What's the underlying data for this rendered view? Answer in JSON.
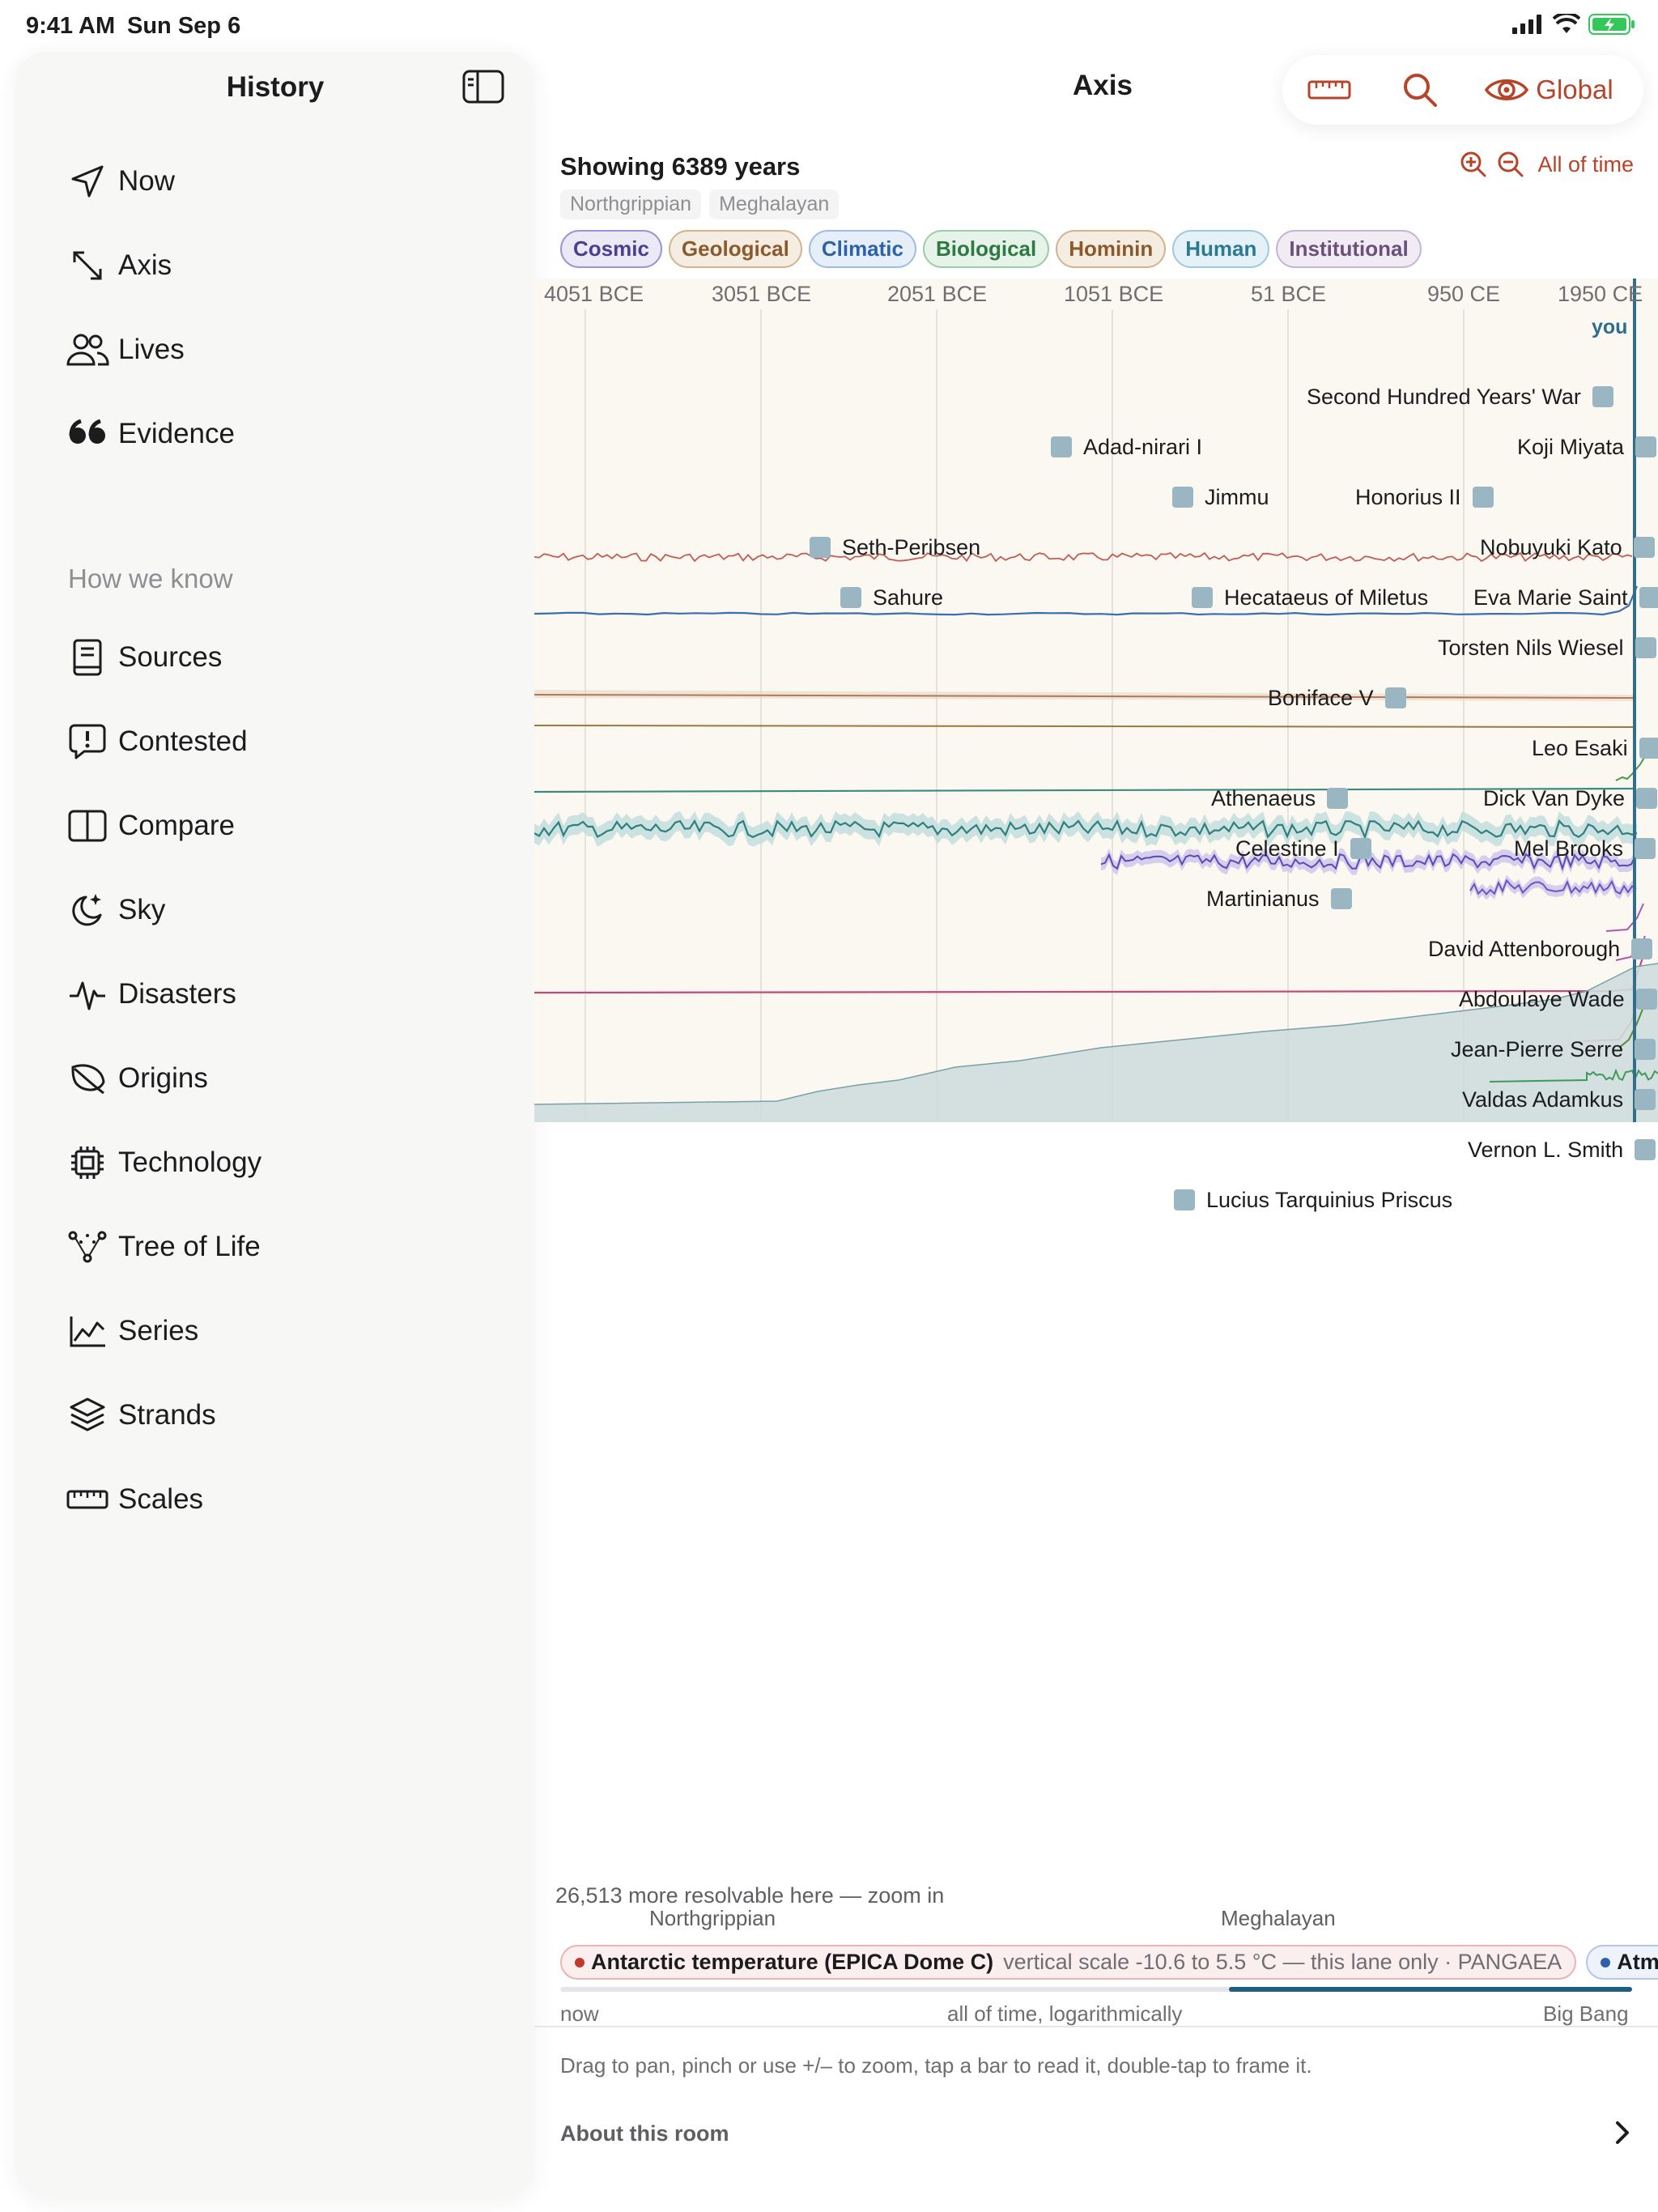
{
  "status": {
    "time": "9:41 AM",
    "date": "Sun Sep 6"
  },
  "sidebar": {
    "title": "History",
    "items": [
      {
        "label": "Now",
        "icon": "location-arrow-icon"
      },
      {
        "label": "Axis",
        "icon": "expand-arrows-icon"
      },
      {
        "label": "Lives",
        "icon": "people-icon"
      },
      {
        "label": "Evidence",
        "icon": "quote-icon"
      }
    ],
    "section_label": "How we know",
    "section_items": [
      {
        "label": "Sources",
        "icon": "book-icon"
      },
      {
        "label": "Contested",
        "icon": "exclamation-bubble-icon"
      },
      {
        "label": "Compare",
        "icon": "split-square-icon"
      },
      {
        "label": "Sky",
        "icon": "moon-stars-icon"
      },
      {
        "label": "Disasters",
        "icon": "waveform-icon"
      },
      {
        "label": "Origins",
        "icon": "leaf-icon"
      },
      {
        "label": "Technology",
        "icon": "cpu-icon"
      },
      {
        "label": "Tree of Life",
        "icon": "tree-nodes-icon"
      },
      {
        "label": "Series",
        "icon": "line-chart-icon"
      },
      {
        "label": "Strands",
        "icon": "layers-icon"
      },
      {
        "label": "Scales",
        "icon": "ruler-icon"
      }
    ]
  },
  "main": {
    "title": "Axis",
    "toolbar": {
      "global_label": "Global"
    },
    "showing": "Showing 6389 years",
    "all_of_time": "All of time",
    "epochs": [
      "Northgrippian",
      "Meghalayan"
    ],
    "filters": [
      {
        "label": "Cosmic",
        "color": "#4b3f8f",
        "bg": "#ece9f7",
        "border": "#9d93cf"
      },
      {
        "label": "Geological",
        "color": "#8a5a2b",
        "bg": "#f6ede2",
        "border": "#d2b48f"
      },
      {
        "label": "Climatic",
        "color": "#2d62a8",
        "bg": "#e6eff9",
        "border": "#9fbde3"
      },
      {
        "label": "Biological",
        "color": "#2f7a44",
        "bg": "#e5f3e8",
        "border": "#9ccca8"
      },
      {
        "label": "Hominin",
        "color": "#8a5a2b",
        "bg": "#f6ede2",
        "border": "#d2b48f"
      },
      {
        "label": "Human",
        "color": "#2d7894",
        "bg": "#e4f2f7",
        "border": "#9ecbdb"
      },
      {
        "label": "Institutional",
        "color": "#6b4f7d",
        "bg": "#f1ecf4",
        "border": "#c7b5d2"
      }
    ],
    "axis_ticks": [
      "4051 BCE",
      "3051 BCE",
      "2051 BCE",
      "1051 BCE",
      "51 BCE",
      "950 CE",
      "1950 CE"
    ],
    "you_label": "you",
    "events": [
      "Second Hundred Years' War",
      "Adad-nirari I",
      "Koji Miyata",
      "Jimmu",
      "Honorius II",
      "Seth-Peribsen",
      "Nobuyuki Kato",
      "Sahure",
      "Hecataeus of Miletus",
      "Eva Marie Saint",
      "Torsten Nils Wiesel",
      "Boniface V",
      "Leo Esaki",
      "Athenaeus",
      "Dick Van Dyke",
      "Celestine I",
      "Mel Brooks",
      "Martinianus",
      "David Attenborough",
      "Abdoulaye Wade",
      "Jean-Pierre Serre",
      "Valdas Adamkus",
      "Vernon L. Smith",
      "Lucius Tarquinius Priscus"
    ],
    "resolvable": "26,513 more resolvable here — zoom in",
    "bottom_epochs": [
      "Northgrippian",
      "Meghalayan"
    ],
    "series_legend": {
      "active": {
        "name": "Antarctic temperature (EPICA Dome C)",
        "detail": "vertical scale -10.6 to 5.5 °C — this lane only · PANGAEA",
        "color": "#c0392b"
      },
      "next": {
        "name": "Atm",
        "color": "#2d62a8"
      }
    },
    "scale": {
      "left": "now",
      "middle": "all of time, logarithmically",
      "right": "Big Bang"
    },
    "help": "Drag to pan, pinch or use +/– to zoom, tap a bar to read it, double-tap to frame it.",
    "about": "About this room"
  }
}
